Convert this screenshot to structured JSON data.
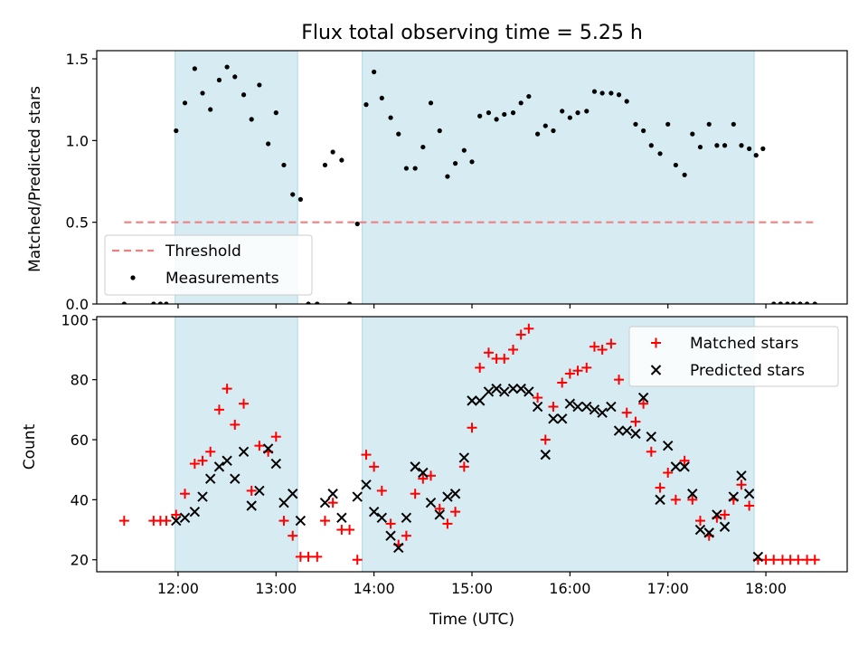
{
  "chart_data": [
    {
      "type": "scatter",
      "title": "Flux total observing time = 5.25 h",
      "ylabel": "Matched/Predicted stars",
      "ylim": [
        0,
        1.55
      ],
      "x_ticks_shown": false,
      "y_ticks": [
        0.0,
        0.5,
        1.0,
        1.5
      ],
      "y_tick_labels": [
        "0.0",
        "0.5",
        "1.0",
        "1.5"
      ],
      "shaded_intervals": [
        [
          11.97,
          13.22
        ],
        [
          13.88,
          17.88
        ]
      ],
      "shade_color": "#add8e6",
      "legend_position": "lower-left",
      "threshold": {
        "name": "Threshold",
        "value": 0.5,
        "x_range": [
          11.45,
          18.5
        ],
        "color": "#f08080"
      },
      "series": [
        {
          "name": "Measurements",
          "color": "#000000",
          "points": [
            [
              11.45,
              0.0
            ],
            [
              11.75,
              0.0
            ],
            [
              11.82,
              0.0
            ],
            [
              11.88,
              0.0
            ],
            [
              11.98,
              1.06
            ],
            [
              12.07,
              1.23
            ],
            [
              12.17,
              1.44
            ],
            [
              12.25,
              1.29
            ],
            [
              12.33,
              1.19
            ],
            [
              12.42,
              1.37
            ],
            [
              12.5,
              1.45
            ],
            [
              12.58,
              1.39
            ],
            [
              12.67,
              1.28
            ],
            [
              12.75,
              1.13
            ],
            [
              12.83,
              1.34
            ],
            [
              12.92,
              0.98
            ],
            [
              13.0,
              1.17
            ],
            [
              13.08,
              0.85
            ],
            [
              13.17,
              0.67
            ],
            [
              13.25,
              0.64
            ],
            [
              13.33,
              0.0
            ],
            [
              13.42,
              0.0
            ],
            [
              13.5,
              0.85
            ],
            [
              13.58,
              0.93
            ],
            [
              13.67,
              0.88
            ],
            [
              13.75,
              0.0
            ],
            [
              13.83,
              0.49
            ],
            [
              13.92,
              1.22
            ],
            [
              14.0,
              1.42
            ],
            [
              14.08,
              1.26
            ],
            [
              14.17,
              1.14
            ],
            [
              14.25,
              1.04
            ],
            [
              14.33,
              0.83
            ],
            [
              14.42,
              0.83
            ],
            [
              14.5,
              0.96
            ],
            [
              14.58,
              1.23
            ],
            [
              14.67,
              1.06
            ],
            [
              14.75,
              0.78
            ],
            [
              14.83,
              0.86
            ],
            [
              14.92,
              0.94
            ],
            [
              15.0,
              0.87
            ],
            [
              15.08,
              1.15
            ],
            [
              15.17,
              1.17
            ],
            [
              15.25,
              1.13
            ],
            [
              15.33,
              1.16
            ],
            [
              15.42,
              1.17
            ],
            [
              15.5,
              1.23
            ],
            [
              15.58,
              1.27
            ],
            [
              15.67,
              1.04
            ],
            [
              15.75,
              1.09
            ],
            [
              15.83,
              1.06
            ],
            [
              15.92,
              1.18
            ],
            [
              16.0,
              1.14
            ],
            [
              16.08,
              1.17
            ],
            [
              16.17,
              1.18
            ],
            [
              16.25,
              1.3
            ],
            [
              16.33,
              1.29
            ],
            [
              16.42,
              1.29
            ],
            [
              16.5,
              1.28
            ],
            [
              16.58,
              1.24
            ],
            [
              16.67,
              1.1
            ],
            [
              16.75,
              1.06
            ],
            [
              16.83,
              0.97
            ],
            [
              16.92,
              0.92
            ],
            [
              17.0,
              1.1
            ],
            [
              17.08,
              0.85
            ],
            [
              17.17,
              0.79
            ],
            [
              17.25,
              1.04
            ],
            [
              17.33,
              0.96
            ],
            [
              17.42,
              1.1
            ],
            [
              17.5,
              0.97
            ],
            [
              17.58,
              0.97
            ],
            [
              17.67,
              1.1
            ],
            [
              17.75,
              0.97
            ],
            [
              17.83,
              0.95
            ],
            [
              17.9,
              0.91
            ],
            [
              17.97,
              0.95
            ],
            [
              18.08,
              0.0
            ],
            [
              18.15,
              0.0
            ],
            [
              18.22,
              0.0
            ],
            [
              18.28,
              0.0
            ],
            [
              18.35,
              0.0
            ],
            [
              18.42,
              0.0
            ],
            [
              18.5,
              0.0
            ]
          ]
        }
      ]
    },
    {
      "type": "scatter",
      "xlabel": "Time (UTC)",
      "ylabel": "Count",
      "xlim": [
        11.17,
        18.83
      ],
      "ylim": [
        16,
        101
      ],
      "x_ticks": [
        12,
        13,
        14,
        15,
        16,
        17,
        18
      ],
      "x_tick_labels": [
        "12:00",
        "13:00",
        "14:00",
        "15:00",
        "16:00",
        "17:00",
        "18:00"
      ],
      "y_ticks": [
        20,
        40,
        60,
        80,
        100
      ],
      "y_tick_labels": [
        "20",
        "40",
        "60",
        "80",
        "100"
      ],
      "shaded_intervals": [
        [
          11.97,
          13.22
        ],
        [
          13.88,
          17.88
        ]
      ],
      "shade_color": "#add8e6",
      "legend_position": "top-right",
      "series": [
        {
          "name": "Matched stars",
          "color": "#ff0000",
          "marker": "+",
          "points": [
            [
              11.45,
              33
            ],
            [
              11.75,
              33
            ],
            [
              11.82,
              33
            ],
            [
              11.88,
              33
            ],
            [
              11.98,
              35
            ],
            [
              12.07,
              42
            ],
            [
              12.17,
              52
            ],
            [
              12.25,
              53
            ],
            [
              12.33,
              56
            ],
            [
              12.42,
              70
            ],
            [
              12.5,
              77
            ],
            [
              12.58,
              65
            ],
            [
              12.67,
              72
            ],
            [
              12.75,
              43
            ],
            [
              12.83,
              58
            ],
            [
              12.92,
              56
            ],
            [
              13.0,
              61
            ],
            [
              13.08,
              33
            ],
            [
              13.17,
              28
            ],
            [
              13.25,
              21
            ],
            [
              13.33,
              21
            ],
            [
              13.42,
              21
            ],
            [
              13.5,
              33
            ],
            [
              13.58,
              39
            ],
            [
              13.67,
              30
            ],
            [
              13.75,
              30
            ],
            [
              13.83,
              20
            ],
            [
              13.92,
              55
            ],
            [
              14.0,
              51
            ],
            [
              14.08,
              43
            ],
            [
              14.17,
              32
            ],
            [
              14.25,
              25
            ],
            [
              14.33,
              28
            ],
            [
              14.42,
              42
            ],
            [
              14.5,
              47
            ],
            [
              14.58,
              48
            ],
            [
              14.67,
              37
            ],
            [
              14.75,
              32
            ],
            [
              14.83,
              36
            ],
            [
              14.92,
              51
            ],
            [
              15.0,
              64
            ],
            [
              15.08,
              84
            ],
            [
              15.17,
              89
            ],
            [
              15.25,
              87
            ],
            [
              15.33,
              87
            ],
            [
              15.42,
              90
            ],
            [
              15.5,
              95
            ],
            [
              15.58,
              97
            ],
            [
              15.67,
              74
            ],
            [
              15.75,
              60
            ],
            [
              15.83,
              71
            ],
            [
              15.92,
              79
            ],
            [
              16.0,
              82
            ],
            [
              16.08,
              83
            ],
            [
              16.17,
              84
            ],
            [
              16.25,
              91
            ],
            [
              16.33,
              90
            ],
            [
              16.42,
              92
            ],
            [
              16.5,
              80
            ],
            [
              16.58,
              69
            ],
            [
              16.67,
              66
            ],
            [
              16.75,
              72
            ],
            [
              16.83,
              56
            ],
            [
              16.92,
              44
            ],
            [
              17.0,
              49
            ],
            [
              17.08,
              40
            ],
            [
              17.17,
              53
            ],
            [
              17.25,
              40
            ],
            [
              17.33,
              33
            ],
            [
              17.42,
              28
            ],
            [
              17.5,
              34
            ],
            [
              17.58,
              35
            ],
            [
              17.67,
              40
            ],
            [
              17.75,
              45
            ],
            [
              17.83,
              38
            ],
            [
              17.92,
              20
            ],
            [
              18.0,
              20
            ],
            [
              18.08,
              20
            ],
            [
              18.17,
              20
            ],
            [
              18.25,
              20
            ],
            [
              18.33,
              20
            ],
            [
              18.42,
              20
            ],
            [
              18.5,
              20
            ]
          ]
        },
        {
          "name": "Predicted stars",
          "color": "#000000",
          "marker": "x",
          "points": [
            [
              11.98,
              33
            ],
            [
              12.07,
              34
            ],
            [
              12.17,
              36
            ],
            [
              12.25,
              41
            ],
            [
              12.33,
              47
            ],
            [
              12.42,
              51
            ],
            [
              12.5,
              53
            ],
            [
              12.58,
              47
            ],
            [
              12.67,
              56
            ],
            [
              12.75,
              38
            ],
            [
              12.83,
              43
            ],
            [
              12.92,
              57
            ],
            [
              13.0,
              52
            ],
            [
              13.08,
              39
            ],
            [
              13.17,
              42
            ],
            [
              13.25,
              33
            ],
            [
              13.5,
              39
            ],
            [
              13.58,
              42
            ],
            [
              13.67,
              34
            ],
            [
              13.83,
              41
            ],
            [
              13.92,
              45
            ],
            [
              14.0,
              36
            ],
            [
              14.08,
              34
            ],
            [
              14.17,
              28
            ],
            [
              14.25,
              24
            ],
            [
              14.33,
              34
            ],
            [
              14.42,
              51
            ],
            [
              14.5,
              49
            ],
            [
              14.58,
              39
            ],
            [
              14.67,
              35
            ],
            [
              14.75,
              41
            ],
            [
              14.83,
              42
            ],
            [
              14.92,
              54
            ],
            [
              15.0,
              73
            ],
            [
              15.08,
              73
            ],
            [
              15.17,
              76
            ],
            [
              15.25,
              77
            ],
            [
              15.33,
              76
            ],
            [
              15.42,
              77
            ],
            [
              15.5,
              77
            ],
            [
              15.58,
              76
            ],
            [
              15.67,
              71
            ],
            [
              15.75,
              55
            ],
            [
              15.83,
              67
            ],
            [
              15.92,
              67
            ],
            [
              16.0,
              72
            ],
            [
              16.08,
              71
            ],
            [
              16.17,
              71
            ],
            [
              16.25,
              70
            ],
            [
              16.33,
              69
            ],
            [
              16.42,
              71
            ],
            [
              16.5,
              63
            ],
            [
              16.58,
              63
            ],
            [
              16.67,
              62
            ],
            [
              16.75,
              74
            ],
            [
              16.83,
              61
            ],
            [
              16.92,
              40
            ],
            [
              17.0,
              58
            ],
            [
              17.08,
              51
            ],
            [
              17.17,
              51
            ],
            [
              17.25,
              42
            ],
            [
              17.33,
              30
            ],
            [
              17.42,
              29
            ],
            [
              17.5,
              35
            ],
            [
              17.58,
              31
            ],
            [
              17.67,
              41
            ],
            [
              17.75,
              48
            ],
            [
              17.83,
              42
            ],
            [
              17.92,
              21
            ]
          ]
        }
      ]
    }
  ]
}
